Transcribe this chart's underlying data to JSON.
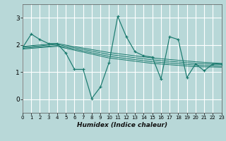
{
  "xlabel": "Humidex (Indice chaleur)",
  "background_color": "#b8d8d8",
  "grid_color": "#e8e8e8",
  "line_color": "#1a7a6e",
  "xlim": [
    0,
    23
  ],
  "ylim": [
    -0.5,
    3.5
  ],
  "yticks": [
    0,
    1,
    2,
    3
  ],
  "xticks": [
    0,
    1,
    2,
    3,
    4,
    5,
    6,
    7,
    8,
    9,
    10,
    11,
    12,
    13,
    14,
    15,
    16,
    17,
    18,
    19,
    20,
    21,
    22,
    23
  ],
  "main_x": [
    0,
    1,
    2,
    3,
    4,
    5,
    6,
    7,
    8,
    9,
    10,
    11,
    12,
    13,
    14,
    15,
    16,
    17,
    18,
    19,
    20,
    21,
    22,
    23
  ],
  "main_y": [
    1.9,
    2.4,
    2.2,
    2.05,
    2.05,
    1.7,
    1.1,
    1.1,
    0.03,
    0.45,
    1.35,
    3.05,
    2.3,
    1.75,
    1.6,
    1.55,
    0.75,
    2.3,
    2.2,
    0.8,
    1.3,
    1.05,
    1.3,
    1.3
  ],
  "trend_lines": [
    {
      "x": [
        0,
        4,
        10,
        15,
        20,
        23
      ],
      "y": [
        1.95,
        2.05,
        1.72,
        1.52,
        1.38,
        1.32
      ]
    },
    {
      "x": [
        0,
        4,
        10,
        15,
        20,
        23
      ],
      "y": [
        1.92,
        2.02,
        1.65,
        1.45,
        1.32,
        1.28
      ]
    },
    {
      "x": [
        0,
        4,
        10,
        15,
        20,
        23
      ],
      "y": [
        1.88,
        1.98,
        1.58,
        1.38,
        1.26,
        1.22
      ]
    },
    {
      "x": [
        0,
        4,
        10,
        15,
        20,
        23
      ],
      "y": [
        1.85,
        1.95,
        1.52,
        1.32,
        1.2,
        1.18
      ]
    }
  ]
}
